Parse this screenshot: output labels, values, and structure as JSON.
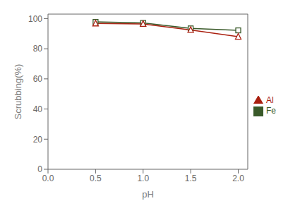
{
  "chart_data": {
    "type": "line",
    "x_label": "pH",
    "y_label": "Scrubbing(%)",
    "x": [
      0.5,
      1.0,
      1.5,
      2.0
    ],
    "series": [
      {
        "name": "Fe",
        "color": "#3a5a2a",
        "marker": "square",
        "line_style": "solid",
        "values": [
          97.8,
          97.2,
          93.5,
          92.2
        ]
      },
      {
        "name": "Al",
        "color": "#aa2010",
        "marker": "triangle",
        "line_style": "solid",
        "values": [
          96.8,
          96.5,
          92.5,
          88.0
        ]
      }
    ],
    "xlim": [
      0.0,
      2.1
    ],
    "ylim": [
      0,
      103
    ],
    "xticks": [
      {
        "value": 0.0,
        "label": "0.0"
      },
      0.5,
      {
        "value": 1.0,
        "label": "1.0"
      },
      1.5,
      {
        "value": 2.0,
        "label": "2.0"
      }
    ],
    "yticks": [
      0,
      20,
      40,
      60,
      80,
      100
    ],
    "grid": false,
    "legend": "right"
  }
}
